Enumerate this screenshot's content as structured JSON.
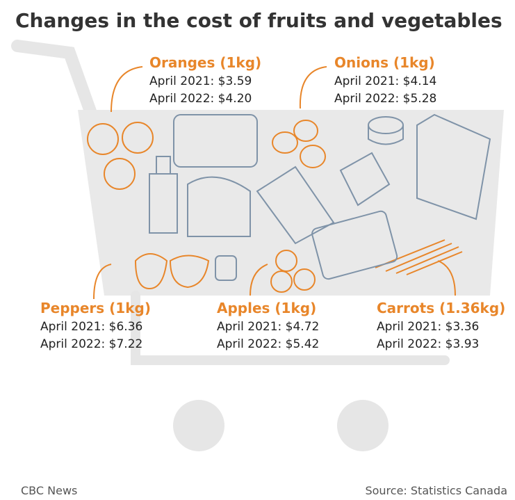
{
  "title": "Changes in the cost of fruits and vegetables",
  "items": [
    {
      "name": "Oranges (1kg)",
      "lines": [
        "April 2021: $3.59",
        "April 2022: $4.20"
      ]
    },
    {
      "name": "Onions (1kg)",
      "lines": [
        "April 2021: $4.14",
        "April 2022: $5.28"
      ]
    },
    {
      "name": "Peppers (1kg)",
      "lines": [
        "April 2021: $6.36",
        "April 2022: $7.22"
      ]
    },
    {
      "name": "Apples (1kg)",
      "lines": [
        "April 2021: $4.72",
        "April 2022: $5.42"
      ]
    },
    {
      "name": "Carrots (1.36kg)",
      "lines": [
        "April 2021: $3.36",
        "April 2022: $3.93"
      ]
    }
  ],
  "footer": {
    "credit": "CBC News",
    "source": "Source: Statistics Canada"
  }
}
